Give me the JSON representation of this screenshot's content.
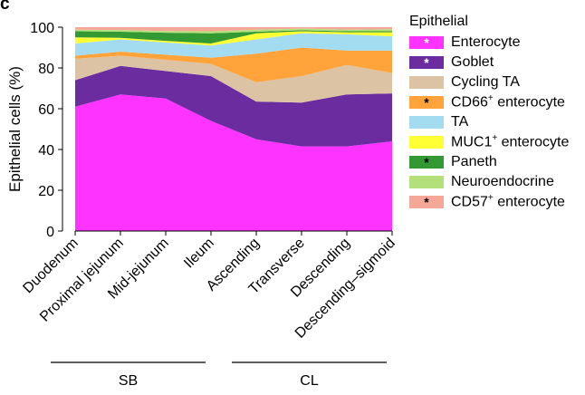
{
  "panel_letter": "c",
  "legend": {
    "title": "Epithelial",
    "items": [
      {
        "label": "Enterocyte",
        "sup": "",
        "color": "#ff33ff",
        "star": "*",
        "star_color": "#ffffff"
      },
      {
        "label": "Goblet",
        "sup": "",
        "color": "#6a2c9e",
        "star": "*",
        "star_color": "#ffffff"
      },
      {
        "label": "Cycling TA",
        "sup": "",
        "color": "#dcc3a3",
        "star": "",
        "star_color": "#000000"
      },
      {
        "label": "CD66",
        "sup": "+",
        "label_suffix": " enterocyte",
        "color": "#ffa33a",
        "star": "*",
        "star_color": "#000000"
      },
      {
        "label": "TA",
        "sup": "",
        "color": "#a3dcf0",
        "star": "",
        "star_color": "#000000"
      },
      {
        "label": "MUC1",
        "sup": "+",
        "label_suffix": " enterocyte",
        "color": "#ffff33",
        "star": "",
        "star_color": "#000000"
      },
      {
        "label": "Paneth",
        "sup": "",
        "color": "#339933",
        "star": "*",
        "star_color": "#000000"
      },
      {
        "label": "Neuroendocrine",
        "sup": "",
        "color": "#b3e07a",
        "star": "",
        "star_color": "#000000"
      },
      {
        "label": "CD57",
        "sup": "+",
        "label_suffix": " enterocyte",
        "color": "#f5a898",
        "star": "*",
        "star_color": "#000000"
      }
    ]
  },
  "groups": [
    {
      "label": "SB",
      "from": 0,
      "to": 3
    },
    {
      "label": "CL",
      "from": 4,
      "to": 7
    }
  ],
  "chart_data": {
    "type": "area",
    "stacked": true,
    "ylabel": "Epithelial cells (%)",
    "xlabel": "",
    "ylim": [
      0,
      100
    ],
    "yticks": [
      0,
      20,
      40,
      60,
      80,
      100
    ],
    "categories": [
      "Duodenum",
      "Proximal jejunum",
      "Mid-jejunum",
      "Ileum",
      "Ascending",
      "Transverse",
      "Descending",
      "Descending–sigmoid"
    ],
    "series": [
      {
        "name": "Enterocyte",
        "values": [
          61,
          67,
          65,
          54,
          45,
          41.5,
          41.5,
          44
        ]
      },
      {
        "name": "Goblet",
        "values": [
          13,
          14,
          13.5,
          22,
          18.5,
          21.5,
          25.5,
          23.5
        ]
      },
      {
        "name": "Cycling TA",
        "values": [
          10.5,
          5,
          5.5,
          6,
          9.5,
          13,
          14.5,
          10
        ]
      },
      {
        "name": "CD66+ enterocyte",
        "values": [
          1.5,
          2,
          2.5,
          3,
          14,
          14,
          7,
          11
        ]
      },
      {
        "name": "TA",
        "values": [
          6,
          6,
          6,
          6,
          7,
          7,
          8,
          7
        ]
      },
      {
        "name": "MUC1+ enterocyte",
        "values": [
          3,
          0.8,
          0.8,
          1,
          3,
          1,
          1,
          2
        ]
      },
      {
        "name": "Paneth",
        "values": [
          3,
          3,
          4,
          5,
          0.8,
          0.5,
          0.5,
          0.5
        ]
      },
      {
        "name": "Neuroendocrine",
        "values": [
          0.8,
          0.8,
          0.8,
          1,
          1,
          0.8,
          0.8,
          1
        ]
      },
      {
        "name": "CD57+ enterocyte",
        "values": [
          1.2,
          1.4,
          1.9,
          2,
          1.2,
          0.7,
          1.2,
          1
        ]
      }
    ]
  }
}
